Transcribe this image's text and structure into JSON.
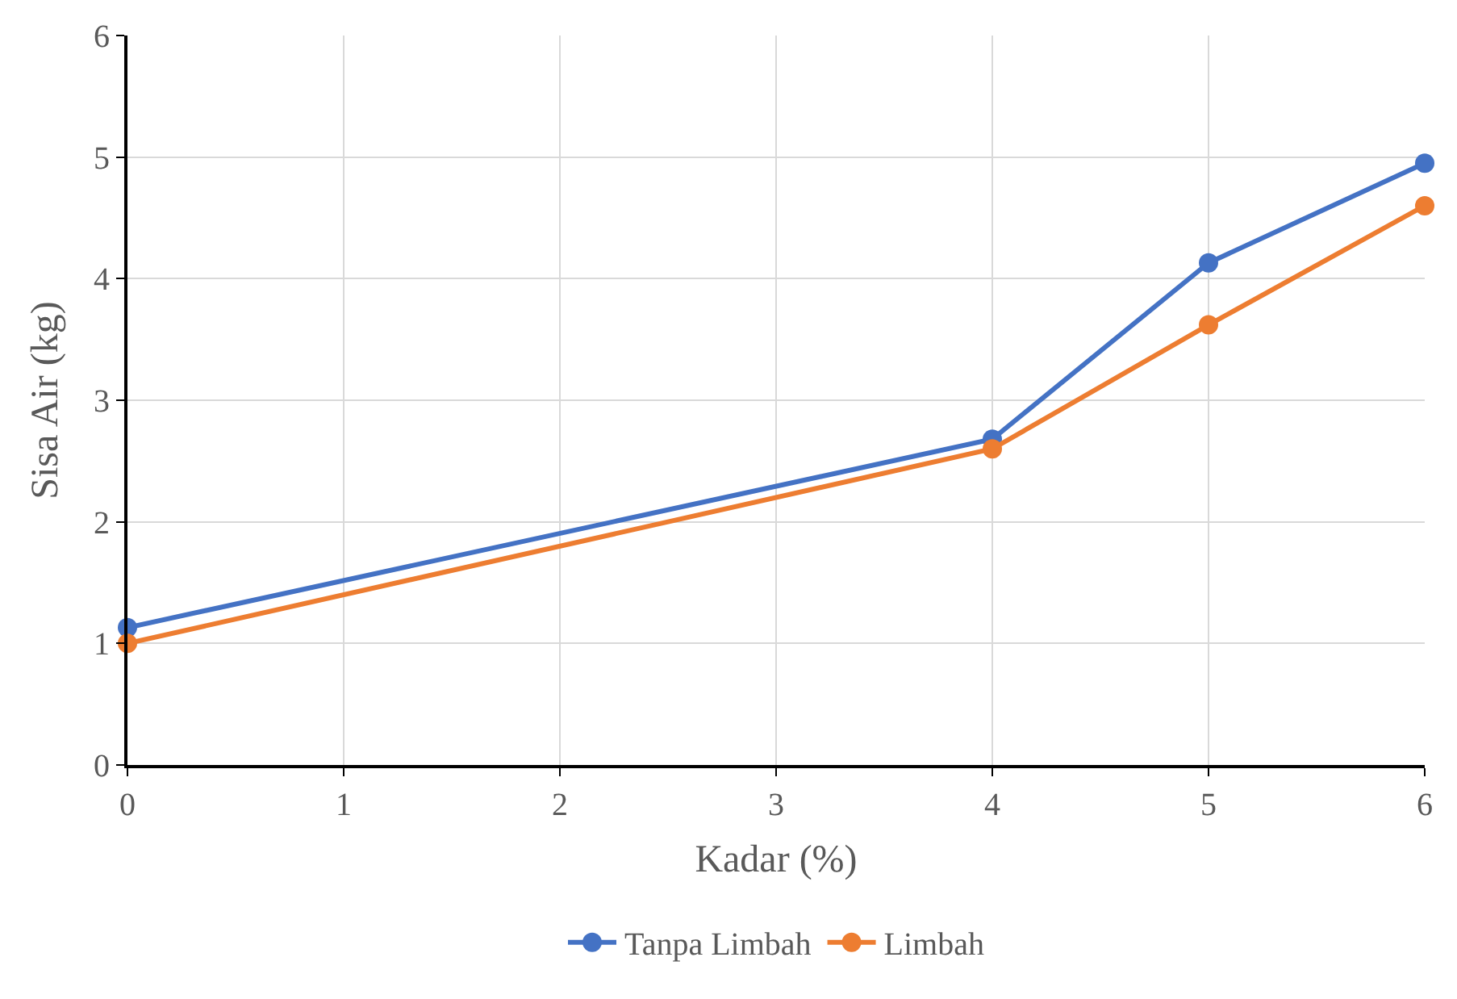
{
  "chart_data": {
    "type": "line",
    "xlabel": "Kadar (%)",
    "ylabel": "Sisa Air (kg)",
    "x": [
      0,
      4,
      5,
      6
    ],
    "series": [
      {
        "name": "Tanpa Limbah",
        "color": "#4472c4",
        "values": [
          1.13,
          2.68,
          4.13,
          4.95
        ]
      },
      {
        "name": "Limbah",
        "color": "#ed7d31",
        "values": [
          1.0,
          2.6,
          3.62,
          4.6
        ]
      }
    ],
    "xlim": [
      0,
      6
    ],
    "xticks": [
      0,
      1,
      2,
      3,
      4,
      5,
      6
    ],
    "ylim": [
      0,
      6
    ],
    "yticks": [
      0,
      1,
      2,
      3,
      4,
      5,
      6
    ],
    "grid": true,
    "legend": "bottom",
    "marker": "circle",
    "line_style": "solid"
  }
}
